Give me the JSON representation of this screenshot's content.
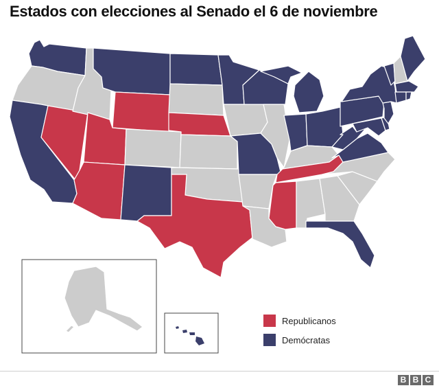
{
  "title": "Estados con elecciones al Senado el 6 de noviembre",
  "colors": {
    "republican": "#c8374a",
    "democrat": "#3b3f6b",
    "no_election": "#cccccc",
    "border": "#ffffff"
  },
  "legend": [
    {
      "label": "Republicanos",
      "color": "#c8374a"
    },
    {
      "label": "Demócratas",
      "color": "#3b3f6b"
    }
  ],
  "states": [
    {
      "name": "Washington",
      "party": "democrat"
    },
    {
      "name": "Oregon",
      "party": "none"
    },
    {
      "name": "California",
      "party": "democrat"
    },
    {
      "name": "Nevada",
      "party": "republican"
    },
    {
      "name": "Idaho",
      "party": "none"
    },
    {
      "name": "Montana",
      "party": "democrat"
    },
    {
      "name": "Wyoming",
      "party": "republican"
    },
    {
      "name": "Utah",
      "party": "republican"
    },
    {
      "name": "Arizona",
      "party": "republican"
    },
    {
      "name": "Colorado",
      "party": "none"
    },
    {
      "name": "New Mexico",
      "party": "democrat"
    },
    {
      "name": "North Dakota",
      "party": "democrat"
    },
    {
      "name": "South Dakota",
      "party": "none"
    },
    {
      "name": "Nebraska",
      "party": "republican"
    },
    {
      "name": "Kansas",
      "party": "none"
    },
    {
      "name": "Oklahoma",
      "party": "none"
    },
    {
      "name": "Texas",
      "party": "republican"
    },
    {
      "name": "Minnesota",
      "party": "democrat"
    },
    {
      "name": "Iowa",
      "party": "none"
    },
    {
      "name": "Missouri",
      "party": "democrat"
    },
    {
      "name": "Arkansas",
      "party": "none"
    },
    {
      "name": "Louisiana",
      "party": "none"
    },
    {
      "name": "Wisconsin",
      "party": "democrat"
    },
    {
      "name": "Illinois",
      "party": "none"
    },
    {
      "name": "Michigan",
      "party": "democrat"
    },
    {
      "name": "Indiana",
      "party": "democrat"
    },
    {
      "name": "Ohio",
      "party": "democrat"
    },
    {
      "name": "Kentucky",
      "party": "none"
    },
    {
      "name": "Tennessee",
      "party": "republican"
    },
    {
      "name": "Mississippi",
      "party": "republican"
    },
    {
      "name": "Alabama",
      "party": "none"
    },
    {
      "name": "Georgia",
      "party": "none"
    },
    {
      "name": "Florida",
      "party": "democrat"
    },
    {
      "name": "South Carolina",
      "party": "none"
    },
    {
      "name": "North Carolina",
      "party": "none"
    },
    {
      "name": "Virginia",
      "party": "democrat"
    },
    {
      "name": "West Virginia",
      "party": "democrat"
    },
    {
      "name": "Pennsylvania",
      "party": "democrat"
    },
    {
      "name": "New York",
      "party": "democrat"
    },
    {
      "name": "Vermont",
      "party": "democrat"
    },
    {
      "name": "New Hampshire",
      "party": "none"
    },
    {
      "name": "Maine",
      "party": "democrat"
    },
    {
      "name": "Massachusetts",
      "party": "democrat"
    },
    {
      "name": "Connecticut",
      "party": "democrat"
    },
    {
      "name": "Rhode Island",
      "party": "democrat"
    },
    {
      "name": "New Jersey",
      "party": "democrat"
    },
    {
      "name": "Delaware",
      "party": "democrat"
    },
    {
      "name": "Maryland",
      "party": "democrat"
    },
    {
      "name": "Alaska",
      "party": "none"
    },
    {
      "name": "Hawaii",
      "party": "democrat"
    }
  ],
  "footer": {
    "logo_letters": [
      "B",
      "B",
      "C"
    ]
  }
}
